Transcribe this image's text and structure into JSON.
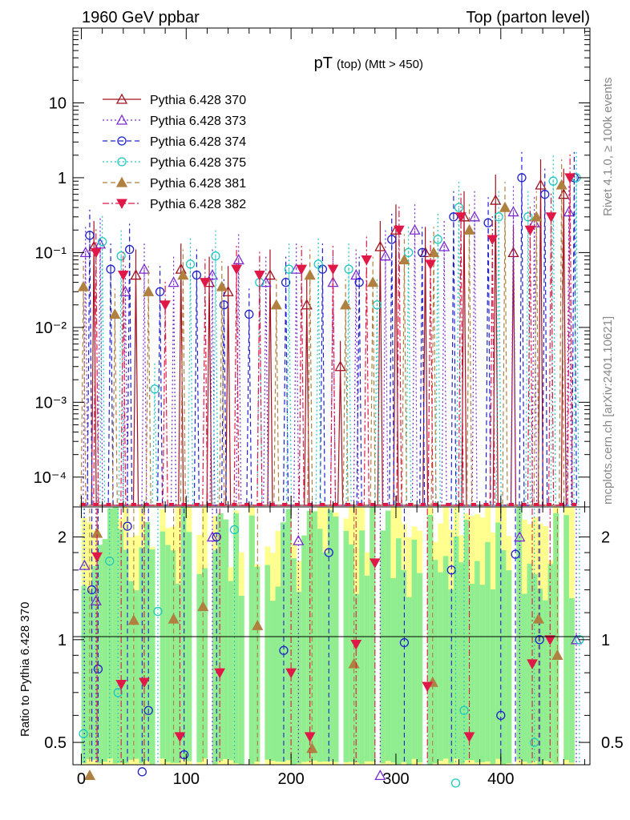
{
  "header": {
    "left": "1960 GeV ppbar",
    "right": "Top (parton level)"
  },
  "side_labels": {
    "rivet": "Rivet 4.1.0, ≥ 100k events",
    "mcplots": "mcplots.cern.ch [arXiv:2401.10621]"
  },
  "chart_data": [
    {
      "type": "line",
      "title_main": "pT",
      "title_sub": "(top) (Mtt > 450)",
      "xlabel": "",
      "ylabel": "",
      "yscale": "log",
      "xlim": [
        -8,
        485
      ],
      "ylim": [
        4e-05,
        100
      ],
      "yticks": [
        {
          "value": 10,
          "label": "10"
        },
        {
          "value": 1,
          "label": "1"
        },
        {
          "value": 0.1,
          "label": "10⁻¹"
        },
        {
          "value": 0.01,
          "label": "10⁻²"
        },
        {
          "value": 0.001,
          "label": "10⁻³"
        },
        {
          "value": 0.0001,
          "label": "10⁻⁴"
        }
      ],
      "series": [
        {
          "name": "Pythia 6.428 370",
          "color": "#a01020",
          "marker": "triangle-open",
          "dash": "solid",
          "x": [
            12,
            52,
            95,
            122,
            140,
            180,
            215,
            247,
            285,
            300,
            328,
            365,
            395,
            412,
            438,
            460
          ],
          "values": [
            0.12,
            0.05,
            0.06,
            0.04,
            0.03,
            0.05,
            0.02,
            0.003,
            0.12,
            0.2,
            0.1,
            0.3,
            0.5,
            0.1,
            0.8,
            0.6
          ]
        },
        {
          "name": "Pythia 6.428 373",
          "color": "#7a2bd1",
          "marker": "triangle-open",
          "dash": "dotted",
          "x": [
            4,
            18,
            42,
            60,
            88,
            125,
            150,
            176,
            205,
            240,
            262,
            290,
            318,
            346,
            375,
            412,
            432,
            465
          ],
          "values": [
            0.1,
            0.13,
            0.03,
            0.06,
            0.04,
            0.05,
            0.08,
            0.04,
            0.06,
            0.04,
            0.05,
            0.09,
            0.2,
            0.12,
            0.3,
            0.35,
            0.25,
            0.35
          ]
        },
        {
          "name": "Pythia 6.428 374",
          "color": "#2020cc",
          "marker": "circle-open",
          "dash": "dashed",
          "x": [
            8,
            28,
            46,
            75,
            110,
            136,
            160,
            195,
            230,
            265,
            296,
            325,
            355,
            388,
            420,
            442,
            470
          ],
          "values": [
            0.17,
            0.06,
            0.11,
            0.03,
            0.05,
            0.02,
            0.015,
            0.04,
            0.06,
            0.04,
            0.15,
            0.1,
            0.3,
            0.25,
            1.0,
            0.6,
            1.0
          ]
        },
        {
          "name": "Pythia 6.428 375",
          "color": "#20c8c0",
          "marker": "circle-open",
          "dash": "dotted",
          "x": [
            20,
            38,
            70,
            104,
            128,
            170,
            198,
            226,
            255,
            282,
            312,
            340,
            360,
            398,
            426,
            450,
            472
          ],
          "values": [
            0.14,
            0.09,
            0.0015,
            0.07,
            0.09,
            0.04,
            0.06,
            0.07,
            0.06,
            0.02,
            0.1,
            0.15,
            0.4,
            0.3,
            0.3,
            0.9,
            1.0
          ]
        },
        {
          "name": "Pythia 6.428 381",
          "color": "#b08040",
          "marker": "triangle-filled",
          "dash": "dashed",
          "x": [
            2,
            32,
            64,
            97,
            134,
            186,
            218,
            252,
            278,
            308,
            336,
            370,
            404,
            434,
            458
          ],
          "values": [
            0.035,
            0.015,
            0.03,
            0.05,
            0.035,
            0.02,
            0.05,
            0.02,
            0.04,
            0.08,
            0.1,
            0.2,
            0.4,
            0.3,
            0.8
          ]
        },
        {
          "name": "Pythia 6.428 382",
          "color": "#e01848",
          "marker": "triangle-down-filled",
          "dash": "dashdot",
          "x": [
            14,
            40,
            80,
            118,
            148,
            170,
            210,
            240,
            272,
            303,
            333,
            362,
            392,
            428,
            448,
            466
          ],
          "values": [
            0.1,
            0.05,
            0.02,
            0.04,
            0.06,
            0.05,
            0.06,
            0.06,
            0.08,
            0.2,
            0.07,
            0.3,
            0.15,
            0.2,
            0.3,
            1.0
          ]
        }
      ]
    },
    {
      "type": "line",
      "panel": "ratio",
      "xlabel": "",
      "ylabel": "Ratio to Pythia 6.428 370",
      "yscale": "log",
      "xlim": [
        -8,
        485
      ],
      "ylim": [
        0.43,
        2.45
      ],
      "yticks": [
        {
          "value": 0.5,
          "label": "0.5"
        },
        {
          "value": 1,
          "label": "1"
        },
        {
          "value": 2,
          "label": "2"
        }
      ],
      "xticks": [
        {
          "value": 0,
          "label": "0"
        },
        {
          "value": 100,
          "label": "100"
        },
        {
          "value": 200,
          "label": "200"
        },
        {
          "value": 300,
          "label": "300"
        },
        {
          "value": 400,
          "label": "400"
        }
      ],
      "reference_line": 1,
      "band": {
        "x_start": 0,
        "x_end": 470,
        "bin_width": 5,
        "inner_color": "#90ee90",
        "outer_color": "#ffff90"
      },
      "series": [
        {
          "name": "Pythia 6.428 373",
          "color": "#7a2bd1",
          "marker": "triangle-open",
          "dash": "dotted",
          "x": [
            3,
            14,
            125,
            207,
            285,
            418,
            472
          ],
          "values": [
            1.65,
            1.3,
            2.0,
            1.95,
            0.4,
            2.0,
            1.0
          ]
        },
        {
          "name": "Pythia 6.428 374",
          "color": "#2020cc",
          "marker": "circle-open",
          "dash": "dashed",
          "x": [
            10,
            16,
            44,
            58,
            64,
            98,
            129,
            193,
            236,
            308,
            353,
            400,
            414,
            437
          ],
          "values": [
            1.4,
            0.82,
            2.15,
            0.41,
            0.62,
            0.46,
            2.0,
            0.93,
            1.8,
            0.98,
            1.6,
            0.6,
            1.78,
            1.0
          ]
        },
        {
          "name": "Pythia 6.428 375",
          "color": "#20c8c0",
          "marker": "circle-open",
          "dash": "dotted",
          "x": [
            2,
            27,
            35,
            73,
            146,
            357,
            365,
            432,
            475
          ],
          "values": [
            0.53,
            1.7,
            0.7,
            1.21,
            2.1,
            0.38,
            0.62,
            0.5,
            1.0
          ]
        },
        {
          "name": "Pythia 6.428 381",
          "color": "#b08040",
          "marker": "triangle-filled",
          "dash": "dashed",
          "x": [
            8,
            15,
            50,
            88,
            116,
            168,
            220,
            260,
            335,
            436,
            454
          ],
          "values": [
            0.4,
            2.05,
            1.14,
            1.15,
            1.25,
            1.1,
            0.48,
            0.85,
            0.75,
            1.15,
            0.9
          ]
        },
        {
          "name": "Pythia 6.428 382",
          "color": "#e01848",
          "marker": "triangle-down-filled",
          "dash": "dashdot",
          "x": [
            15,
            38,
            60,
            94,
            132,
            200,
            218,
            262,
            280,
            330,
            370,
            430,
            447
          ],
          "values": [
            1.75,
            0.74,
            0.75,
            0.52,
            0.8,
            0.8,
            0.52,
            0.97,
            1.68,
            0.73,
            0.52,
            0.85,
            1.0
          ]
        }
      ]
    }
  ]
}
